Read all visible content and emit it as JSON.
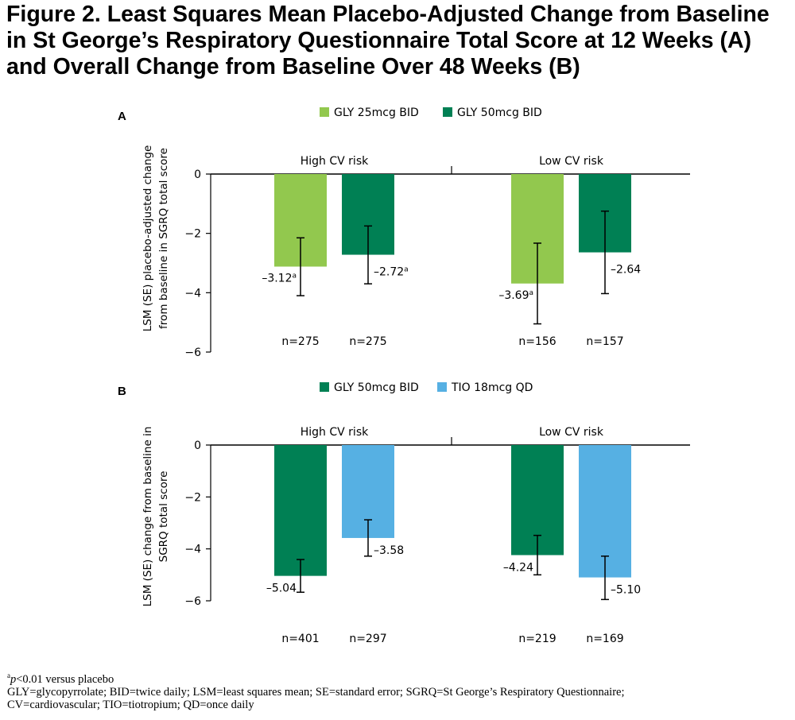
{
  "title": {
    "line1": "Figure 2. Least Squares Mean Placebo-Adjusted Change from Baseline",
    "line2": "in St George’s Respiratory Questionnaire Total Score at 12 Weeks (A)",
    "line3": "and Overall Change from Baseline Over 48 Weeks (B)"
  },
  "colors": {
    "gly25": "#92c84e",
    "gly50": "#008054",
    "tio18": "#56b0e3",
    "axis": "#000000"
  },
  "chart_data": [
    {
      "panel": "A",
      "type": "bar",
      "ylabel": [
        "LSM (SE) placebo-adjusted change",
        "from baseline in SGRQ total score"
      ],
      "ylim": [
        -6,
        0
      ],
      "yticks": [
        0,
        -2,
        -4,
        -6
      ],
      "categories": [
        "High CV risk",
        "Low CV risk"
      ],
      "legend_position": "top-center",
      "series": [
        {
          "name": "GLY 25mcg BID",
          "color": "#92c84e",
          "values": [
            -3.12,
            -3.69
          ],
          "error_low": [
            -4.1,
            -5.05
          ],
          "error_high": [
            -2.15,
            -2.33
          ],
          "labels": [
            "–3.12",
            "–3.69"
          ],
          "label_sup": [
            "a",
            "a"
          ],
          "n": [
            "n=275",
            "n=156"
          ]
        },
        {
          "name": "GLY 50mcg BID",
          "color": "#008054",
          "values": [
            -2.72,
            -2.64
          ],
          "error_low": [
            -3.7,
            -4.03
          ],
          "error_high": [
            -1.75,
            -1.25
          ],
          "labels": [
            "–2.72",
            "–2.64"
          ],
          "label_sup": [
            "a",
            ""
          ],
          "n": [
            "n=275",
            "n=157"
          ]
        }
      ]
    },
    {
      "panel": "B",
      "type": "bar",
      "ylabel": [
        "LSM (SE) change from baseline in",
        "SGRQ total score"
      ],
      "ylim": [
        -6,
        0
      ],
      "yticks": [
        0,
        -2,
        -4,
        -6
      ],
      "categories": [
        "High CV risk",
        "Low CV risk"
      ],
      "legend_position": "top-center",
      "series": [
        {
          "name": "GLY 50mcg BID",
          "color": "#008054",
          "values": [
            -5.04,
            -4.24
          ],
          "error_low": [
            -5.67,
            -5.0
          ],
          "error_high": [
            -4.41,
            -3.48
          ],
          "labels": [
            "–5.04",
            "–4.24"
          ],
          "label_sup": [
            "",
            ""
          ],
          "n": [
            "n=401",
            "n=219"
          ]
        },
        {
          "name": "TIO 18mcg QD",
          "color": "#56b0e3",
          "values": [
            -3.58,
            -5.1
          ],
          "error_low": [
            -4.28,
            -5.95
          ],
          "error_high": [
            -2.88,
            -4.28
          ],
          "labels": [
            "–3.58",
            "–5.10"
          ],
          "label_sup": [
            "",
            ""
          ],
          "n": [
            "n=297",
            "n=169"
          ]
        }
      ]
    }
  ],
  "footnotes": {
    "sup": "a",
    "line1_italic": "p",
    "line1_rest": "<0.01 versus placebo",
    "line2": "GLY=glycopyrrolate; BID=twice daily; LSM=least squares mean; SE=standard error; SGRQ=St George’s Respiratory Questionnaire;",
    "line3": "CV=cardiovascular; TIO=tiotropium; QD=once daily"
  }
}
